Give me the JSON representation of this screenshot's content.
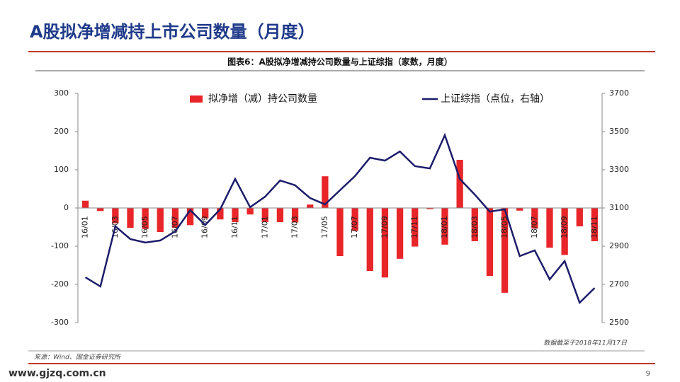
{
  "header": {
    "title": "A股拟净增减持上市公司数量（月度）"
  },
  "chart_data": {
    "type": "bar",
    "title": "图表6：A股拟净增减持公司数量与上证综指（家数，月度）",
    "categories": [
      "16/01",
      null,
      "16/03",
      null,
      "16/05",
      null,
      "16/07",
      null,
      "16/09",
      null,
      "16/11",
      null,
      "17/01",
      null,
      "17/03",
      null,
      "17/05",
      null,
      "17/07",
      null,
      "17/09",
      null,
      "17/11",
      null,
      "18/01",
      null,
      "18/03",
      null,
      "18/05",
      null,
      "18/07",
      null,
      "18/09",
      null,
      "18/11"
    ],
    "series": [
      {
        "name": "拟净增（减）持公司数量",
        "type": "bar",
        "color": "#e8262a",
        "values": [
          19,
          -8,
          -40,
          -52,
          -55,
          -63,
          -52,
          -45,
          -27,
          -30,
          -37,
          -17,
          -37,
          -37,
          -38,
          9,
          83,
          -126,
          -60,
          -165,
          -182,
          -133,
          -101,
          -3,
          -96,
          126,
          -87,
          -178,
          -222,
          -7,
          -54,
          -104,
          -123,
          -48,
          -87
        ]
      },
      {
        "name": "上证综指（点位，右轴）",
        "type": "line",
        "axis": "y2",
        "color": "#1c1c6b",
        "values": [
          2737,
          2689,
          3004,
          2937,
          2919,
          2930,
          2978,
          3089,
          3011,
          3093,
          3252,
          3104,
          3159,
          3244,
          3219,
          3152,
          3119,
          3193,
          3267,
          3363,
          3348,
          3396,
          3319,
          3307,
          3481,
          3252,
          3170,
          3081,
          3093,
          2848,
          2878,
          2726,
          2822,
          2604,
          2681
        ]
      }
    ],
    "ylim": [
      -300,
      300
    ],
    "yticks": [
      -300,
      -200,
      -100,
      0,
      100,
      200,
      300
    ],
    "y2lim": [
      2500,
      3700
    ],
    "y2ticks": [
      2500,
      2700,
      2900,
      3100,
      3300,
      3500,
      3700
    ],
    "note": "数据截至于2018年11月17日",
    "source": "来源：Wind、国金证券研究所"
  },
  "footer": {
    "site": "www.gjzq.com.cn",
    "page": "9"
  }
}
